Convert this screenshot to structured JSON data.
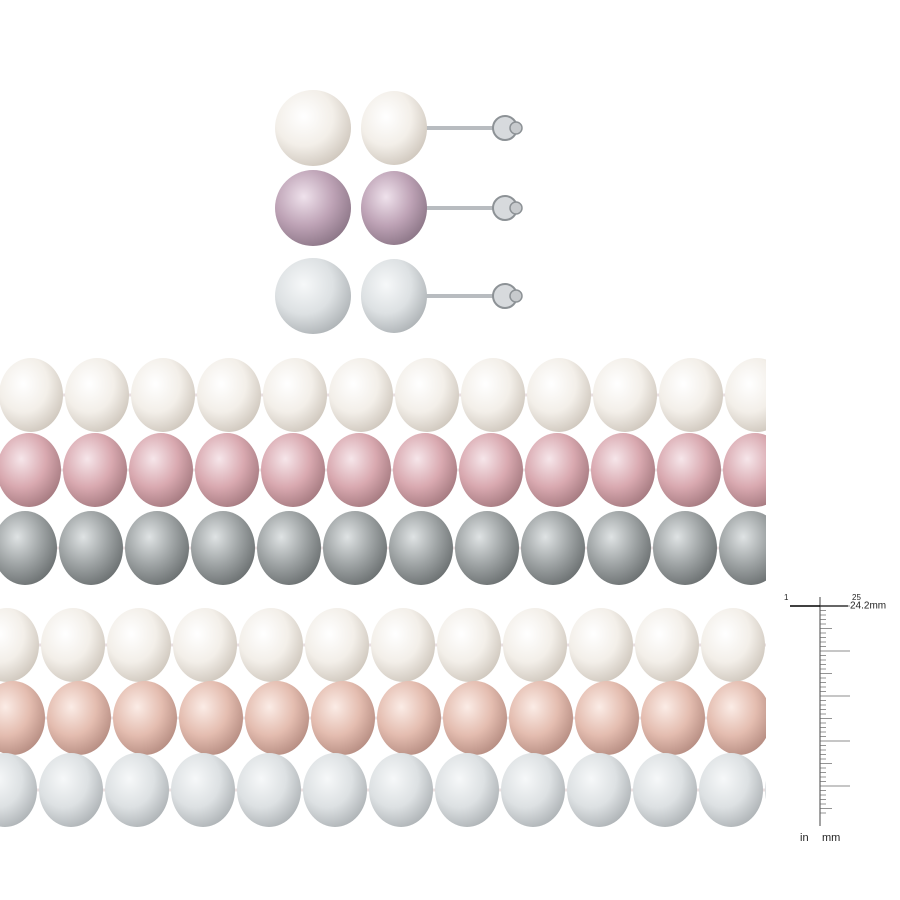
{
  "ruler": {
    "marks": [
      "1",
      "25"
    ],
    "measurement": "24.2mm",
    "units": [
      "in",
      "mm"
    ]
  }
}
